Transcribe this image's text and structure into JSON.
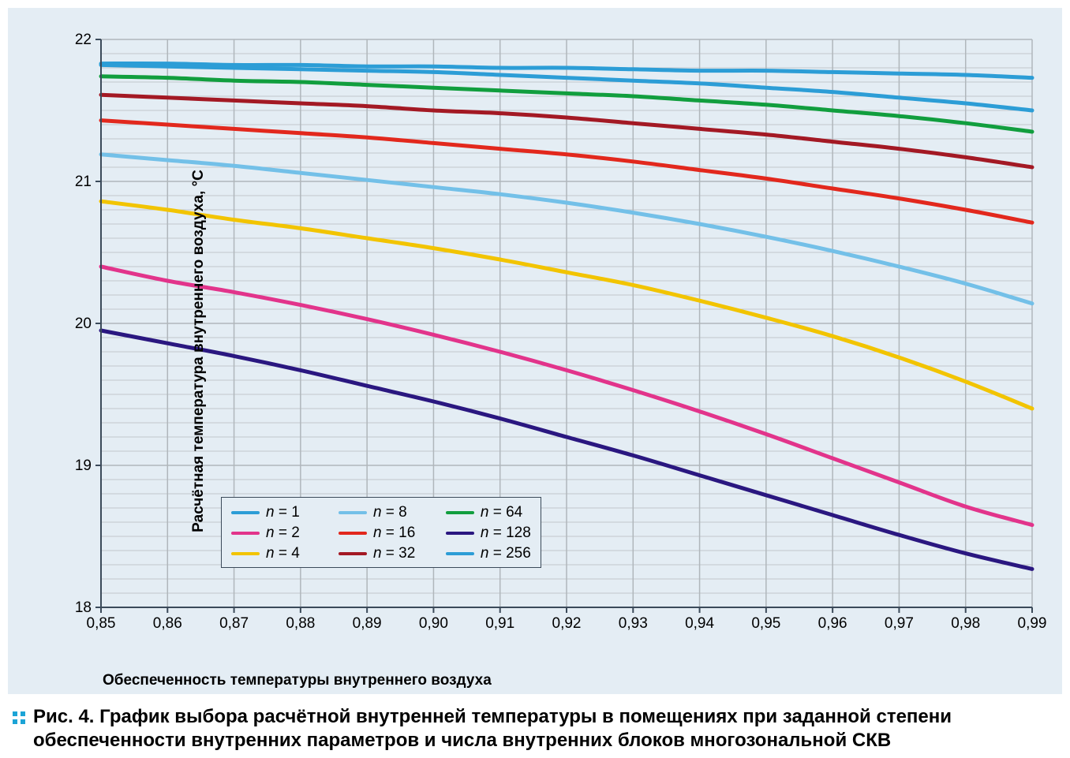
{
  "chart": {
    "type": "line",
    "background_color": "#e4edf4",
    "plot_background_color": "#e4edf4",
    "grid_major_color": "#b0b6bb",
    "grid_minor_color": "#c2c8cd",
    "axis_line_color": "#3b4a5a",
    "axis_line_width": 2,
    "line_width": 5,
    "xlabel": "Обеспеченность температуры внутреннего воздуха",
    "ylabel": "Расчётная температура внутреннего воздуха, °C",
    "label_fontsize": 19,
    "label_fontweight": 700,
    "tick_fontsize": 19,
    "legend_fontsize": 19,
    "x": {
      "min": 0.85,
      "max": 0.99,
      "ticks": [
        "0,85",
        "0,86",
        "0,87",
        "0,88",
        "0,89",
        "0,90",
        "0,91",
        "0,92",
        "0,93",
        "0,94",
        "0,95",
        "0,96",
        "0,97",
        "0,98",
        "0,99"
      ],
      "tick_values": [
        0.85,
        0.86,
        0.87,
        0.88,
        0.89,
        0.9,
        0.91,
        0.92,
        0.93,
        0.94,
        0.95,
        0.96,
        0.97,
        0.98,
        0.99
      ]
    },
    "y": {
      "min": 18,
      "max": 22,
      "ticks": [
        "18",
        "19",
        "20",
        "21",
        "22"
      ],
      "tick_values": [
        18,
        19,
        20,
        21,
        22
      ],
      "minor_count_between": 9
    },
    "series": [
      {
        "key": "n1",
        "label_prefix": "n",
        "label_eq": "= 1",
        "color": "#2c9dd6",
        "x": [
          0.85,
          0.86,
          0.87,
          0.88,
          0.89,
          0.9,
          0.91,
          0.92,
          0.93,
          0.94,
          0.95,
          0.96,
          0.97,
          0.98,
          0.99
        ],
        "y": [
          21.83,
          21.83,
          21.82,
          21.82,
          21.81,
          21.81,
          21.8,
          21.8,
          21.79,
          21.78,
          21.78,
          21.77,
          21.76,
          21.75,
          21.73
        ]
      },
      {
        "key": "n2",
        "label_prefix": "n",
        "label_eq": "= 2",
        "color": "#e2348b",
        "x": [
          0.85,
          0.86,
          0.87,
          0.88,
          0.89,
          0.9,
          0.91,
          0.92,
          0.93,
          0.94,
          0.95,
          0.96,
          0.97,
          0.98,
          0.99
        ],
        "y": [
          20.4,
          20.3,
          20.22,
          20.13,
          20.03,
          19.92,
          19.8,
          19.67,
          19.53,
          19.38,
          19.22,
          19.05,
          18.88,
          18.71,
          18.58
        ]
      },
      {
        "key": "n4",
        "label_prefix": "n",
        "label_eq": "= 4",
        "color": "#f2c400",
        "x": [
          0.85,
          0.86,
          0.87,
          0.88,
          0.89,
          0.9,
          0.91,
          0.92,
          0.93,
          0.94,
          0.95,
          0.96,
          0.97,
          0.98,
          0.99
        ],
        "y": [
          20.86,
          20.8,
          20.73,
          20.67,
          20.6,
          20.53,
          20.45,
          20.36,
          20.27,
          20.16,
          20.04,
          19.91,
          19.76,
          19.59,
          19.4
        ]
      },
      {
        "key": "n8",
        "label_prefix": "n",
        "label_eq": "= 8",
        "color": "#73c0e8",
        "x": [
          0.85,
          0.86,
          0.87,
          0.88,
          0.89,
          0.9,
          0.91,
          0.92,
          0.93,
          0.94,
          0.95,
          0.96,
          0.97,
          0.98,
          0.99
        ],
        "y": [
          21.19,
          21.15,
          21.11,
          21.06,
          21.01,
          20.96,
          20.91,
          20.85,
          20.78,
          20.7,
          20.61,
          20.51,
          20.4,
          20.28,
          20.14
        ]
      },
      {
        "key": "n16",
        "label_prefix": "n",
        "label_eq": "= 16",
        "color": "#e2281d",
        "x": [
          0.85,
          0.86,
          0.87,
          0.88,
          0.89,
          0.9,
          0.91,
          0.92,
          0.93,
          0.94,
          0.95,
          0.96,
          0.97,
          0.98,
          0.99
        ],
        "y": [
          21.43,
          21.4,
          21.37,
          21.34,
          21.31,
          21.27,
          21.23,
          21.19,
          21.14,
          21.08,
          21.02,
          20.95,
          20.88,
          20.8,
          20.71
        ]
      },
      {
        "key": "n32",
        "label_prefix": "n",
        "label_eq": "= 32",
        "color": "#a31924",
        "x": [
          0.85,
          0.86,
          0.87,
          0.88,
          0.89,
          0.9,
          0.91,
          0.92,
          0.93,
          0.94,
          0.95,
          0.96,
          0.97,
          0.98,
          0.99
        ],
        "y": [
          21.61,
          21.59,
          21.57,
          21.55,
          21.53,
          21.5,
          21.48,
          21.45,
          21.41,
          21.37,
          21.33,
          21.28,
          21.23,
          21.17,
          21.1
        ]
      },
      {
        "key": "n64",
        "label_prefix": "n",
        "label_eq": "= 64",
        "color": "#119e3e",
        "x": [
          0.85,
          0.86,
          0.87,
          0.88,
          0.89,
          0.9,
          0.91,
          0.92,
          0.93,
          0.94,
          0.95,
          0.96,
          0.97,
          0.98,
          0.99
        ],
        "y": [
          21.74,
          21.73,
          21.71,
          21.7,
          21.68,
          21.66,
          21.64,
          21.62,
          21.6,
          21.57,
          21.54,
          21.5,
          21.46,
          21.41,
          21.35
        ]
      },
      {
        "key": "n128",
        "label_prefix": "n",
        "label_eq": "= 128",
        "color": "#2a1780",
        "x": [
          0.85,
          0.86,
          0.87,
          0.88,
          0.89,
          0.9,
          0.91,
          0.92,
          0.93,
          0.94,
          0.95,
          0.96,
          0.97,
          0.98,
          0.99
        ],
        "y": [
          19.95,
          19.86,
          19.77,
          19.67,
          19.56,
          19.45,
          19.33,
          19.2,
          19.07,
          18.93,
          18.79,
          18.65,
          18.51,
          18.38,
          18.27
        ]
      },
      {
        "key": "n256",
        "label_prefix": "n",
        "label_eq": "= 256",
        "color": "#2c9dd6",
        "x": [
          0.85,
          0.86,
          0.87,
          0.88,
          0.89,
          0.9,
          0.91,
          0.92,
          0.93,
          0.94,
          0.95,
          0.96,
          0.97,
          0.98,
          0.99
        ],
        "y": [
          21.82,
          21.81,
          21.8,
          21.79,
          21.78,
          21.77,
          21.75,
          21.73,
          21.71,
          21.69,
          21.66,
          21.63,
          21.59,
          21.55,
          21.5
        ]
      }
    ],
    "legend_order": [
      "n1",
      "n8",
      "n64",
      "n2",
      "n16",
      "n128",
      "n4",
      "n32",
      "n256"
    ]
  },
  "caption": {
    "fig_label": "Рис. 4.",
    "text": "График выбора расчётной внутренней температуры в помещениях при заданной степени обеспеченности внутренних параметров и числа внутренних блоков многозональной СКВ",
    "fontsize": 24,
    "bullet_color": "#1ca4d6"
  }
}
